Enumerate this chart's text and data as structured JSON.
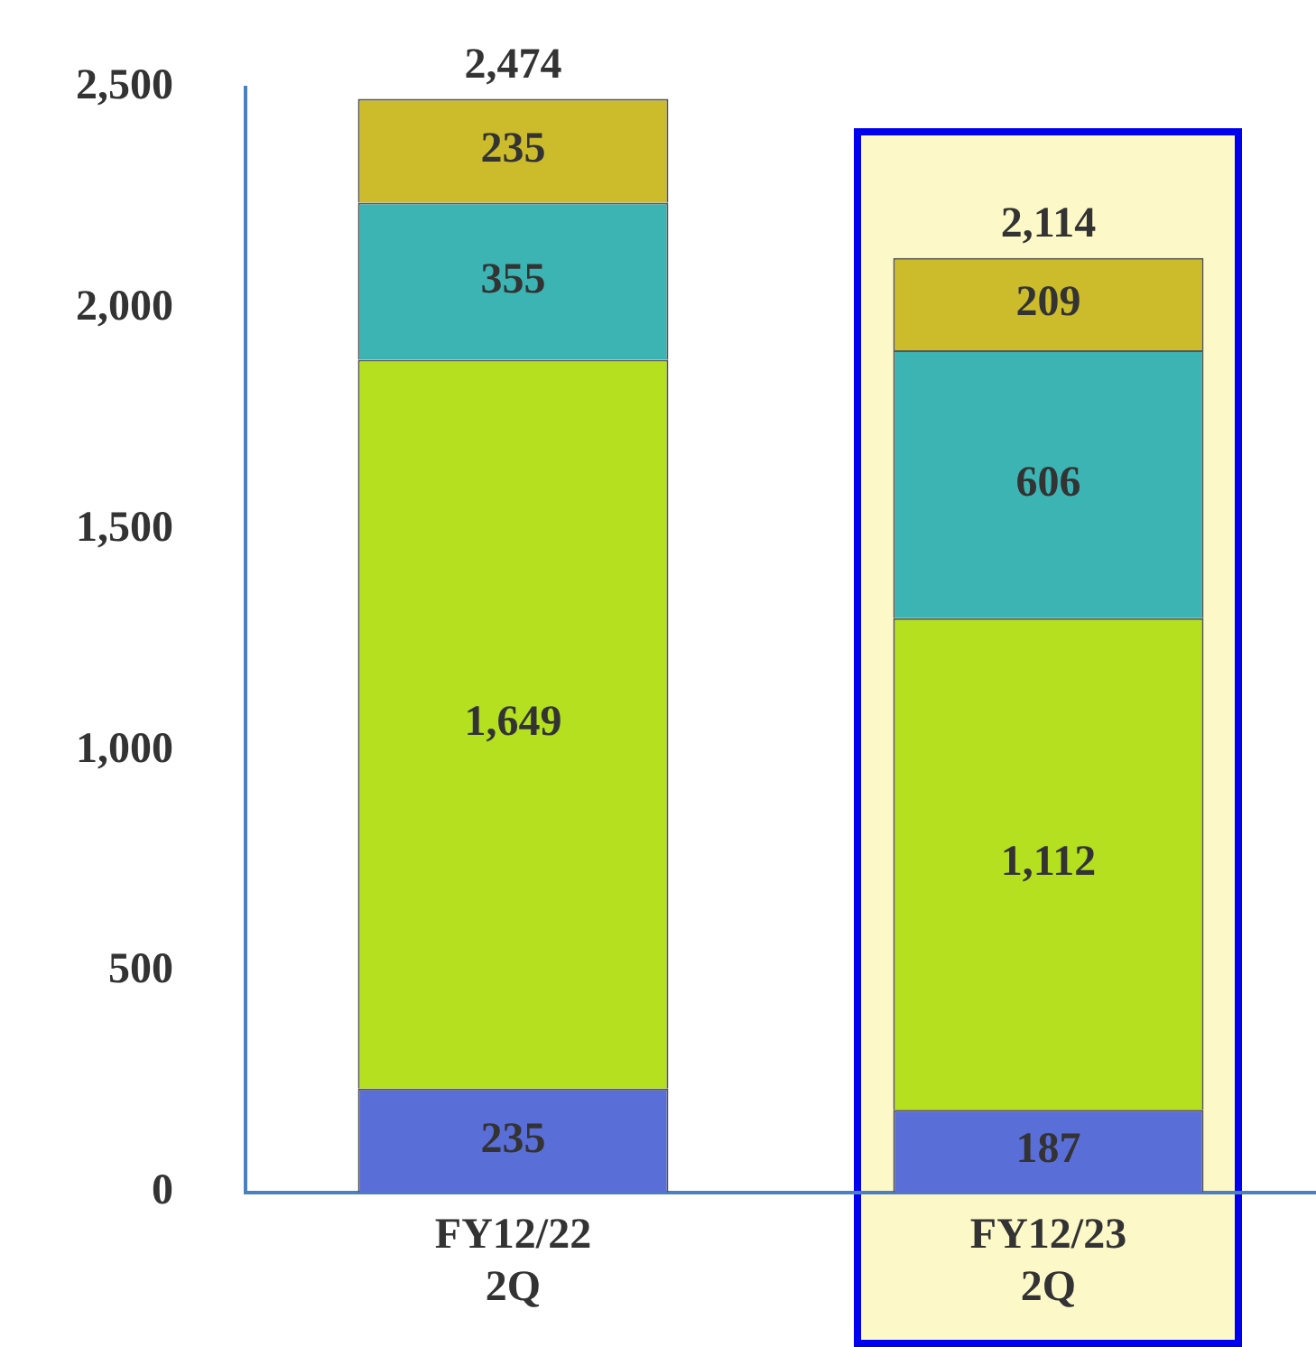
{
  "chart_data": {
    "type": "bar",
    "stacked": true,
    "categories": [
      "FY12/22\n2Q",
      "FY12/23\n2Q"
    ],
    "series": [
      {
        "color": "#5a6ed8",
        "values": [
          235,
          187
        ],
        "value_labels": [
          "235",
          "187"
        ]
      },
      {
        "color": "#b4e020",
        "values": [
          1649,
          1112
        ],
        "value_labels": [
          "1,649",
          "1,112"
        ]
      },
      {
        "color": "#3cb4b4",
        "values": [
          355,
          606
        ],
        "value_labels": [
          "355",
          "606"
        ]
      },
      {
        "color": "#ccbc2c",
        "values": [
          235,
          209
        ],
        "value_labels": [
          "235",
          "209"
        ]
      }
    ],
    "bands": [
      {
        "axis": "x",
        "from": "FY12/23\n2Q",
        "to": "FY12/23\n2Q",
        "color": "#fdf8c8"
      }
    ],
    "ylim": [
      0,
      2500
    ],
    "yticks": [
      0,
      500,
      {
        "value": 1000,
        "label": "1,000"
      },
      {
        "value": 1500,
        "label": "1,500"
      },
      {
        "value": 2000,
        "label": "2,000"
      },
      {
        "value": 2500,
        "label": "2,500"
      }
    ],
    "totals": [
      "2,474",
      "2,114"
    ],
    "grid": false,
    "legend": false
  }
}
